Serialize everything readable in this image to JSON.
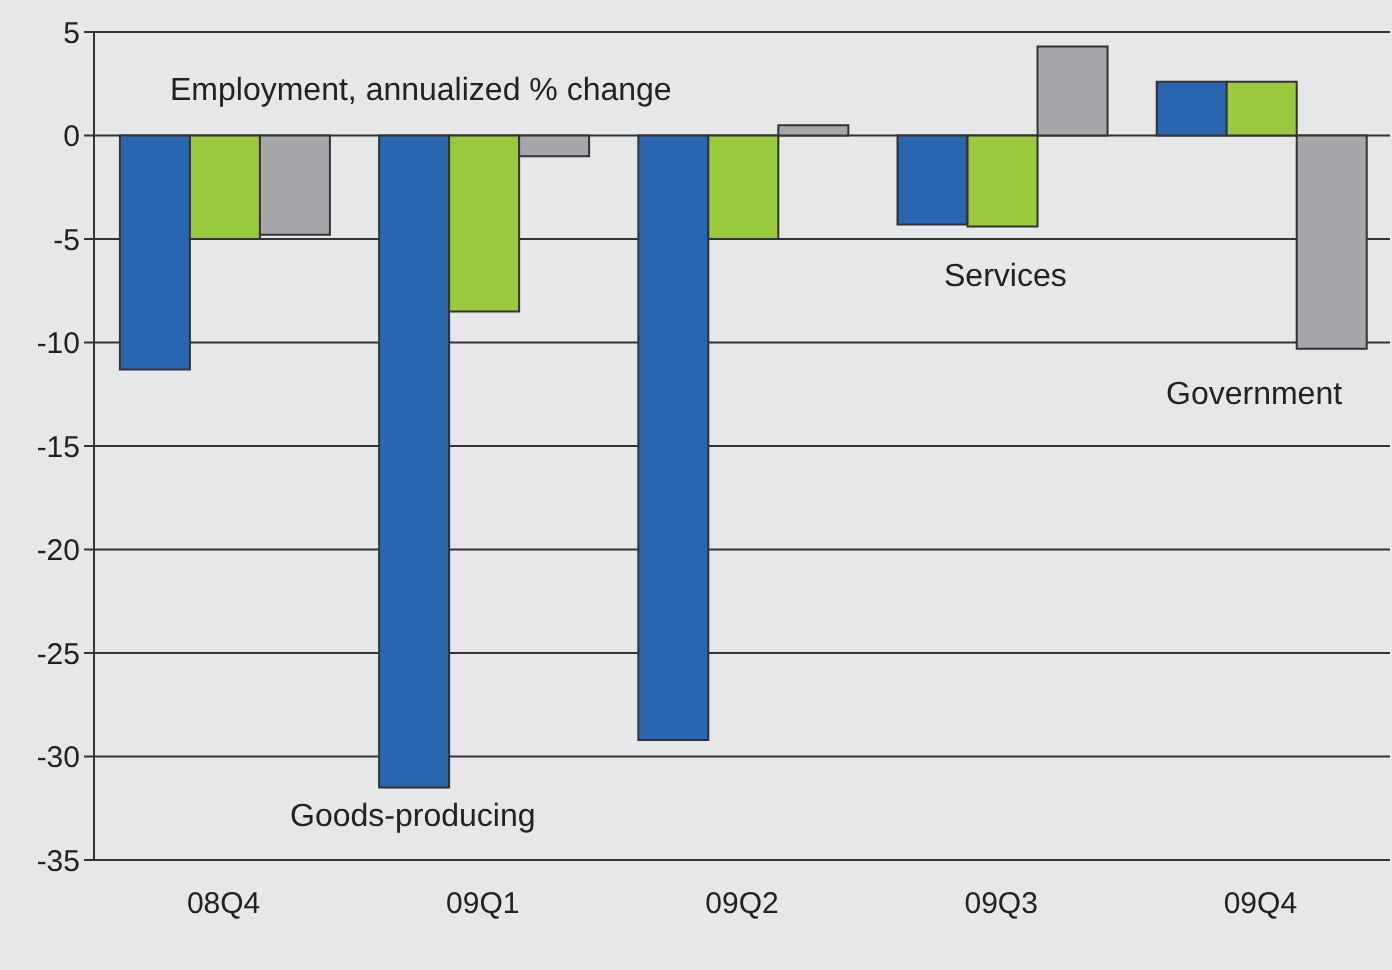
{
  "chart_data": {
    "type": "bar",
    "title": "Employment, annualized % change",
    "categories": [
      "08Q4",
      "09Q1",
      "09Q2",
      "09Q3",
      "09Q4"
    ],
    "series": [
      {
        "name": "Goods-producing",
        "color": "#2a66b0",
        "values": [
          -11.3,
          -31.5,
          -29.2,
          -4.3,
          2.6
        ]
      },
      {
        "name": "Services",
        "color": "#99c93c",
        "values": [
          -5.0,
          -8.5,
          -5.0,
          -4.4,
          2.6
        ]
      },
      {
        "name": "Government",
        "color": "#a6a7aa",
        "values": [
          -4.8,
          -1.0,
          0.5,
          4.3,
          -10.3
        ]
      }
    ],
    "ylim": [
      -35,
      5
    ],
    "yticks": [
      -35,
      -30,
      -25,
      -20,
      -15,
      -10,
      -5,
      0,
      5
    ],
    "grid": "y"
  }
}
